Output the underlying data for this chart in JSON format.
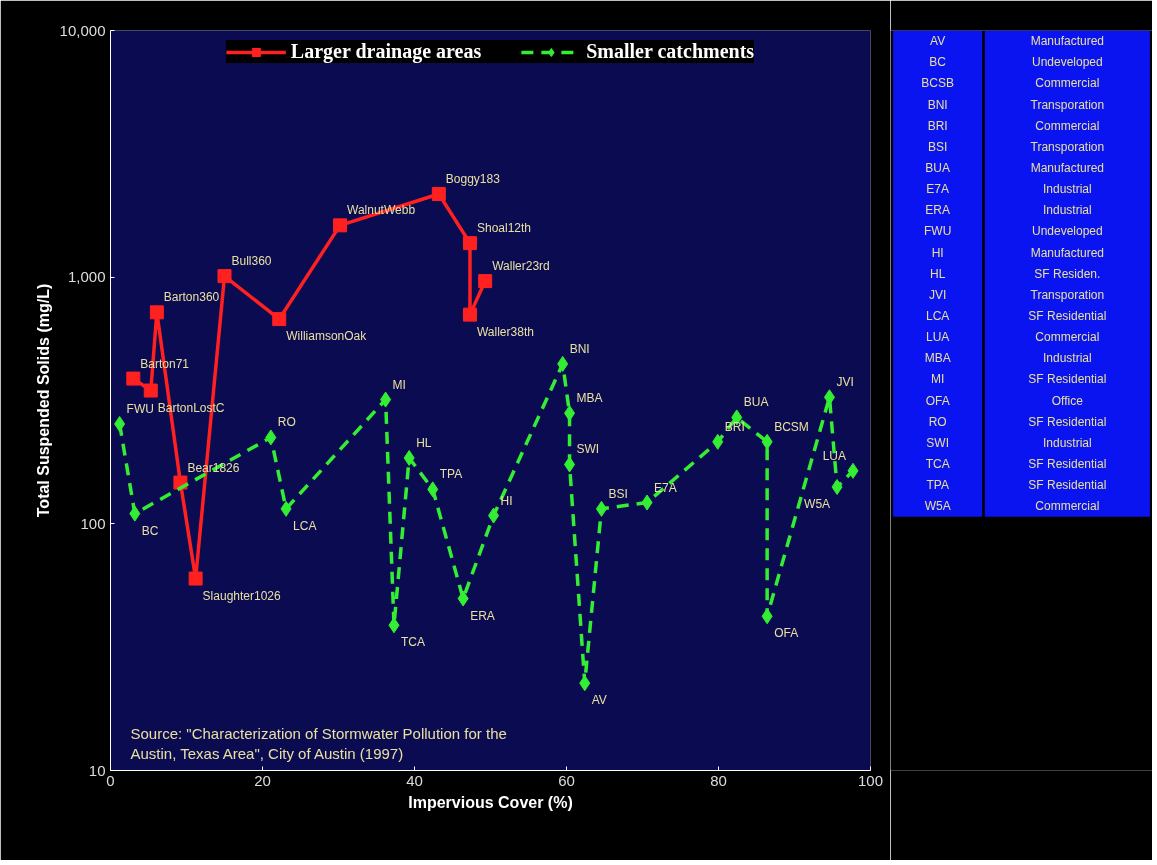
{
  "chart_data": [
    {
      "type": "line",
      "xlabel": "Impervious Cover (%)",
      "ylabel": "Total Suspended Solids (mg/L)",
      "xlim": [
        0,
        100
      ],
      "xticks": [
        0,
        20,
        40,
        60,
        80,
        100
      ],
      "ylim": [
        10,
        10000
      ],
      "yticks": [
        {
          "value": 10,
          "label": "10"
        },
        {
          "value": 100,
          "label": "100"
        },
        {
          "value": 1000,
          "label": "1,000"
        },
        {
          "value": 10000,
          "label": "10,000"
        }
      ],
      "log": true,
      "grid": false,
      "legend": "top",
      "series": [
        {
          "name": "Larger drainage areas",
          "color": "#ff2020",
          "marker": "square",
          "line_style": "solid",
          "x": [
            3.0,
            5.3,
            6.1,
            9.2,
            11.2,
            15.0,
            22.2,
            30.2,
            43.2,
            47.3,
            47.3,
            49.3
          ],
          "values": [
            388,
            347,
            720,
            147,
            60,
            1010,
            676,
            1622,
            2173,
            1374,
            705,
            964
          ]
        },
        {
          "name": "Smaller catchments",
          "color": "#33ee33",
          "marker": "diamond",
          "line_style": "dashed",
          "x": [
            1.2,
            3.2,
            21.1,
            23.1,
            36.2,
            37.3,
            39.3,
            42.4,
            46.4,
            50.4,
            59.5,
            60.4,
            60.4,
            62.4,
            64.6,
            70.6,
            79.9,
            82.4,
            86.4,
            86.4,
            94.6,
            95.6,
            97.7
          ],
          "values": [
            254,
            110,
            224,
            115,
            319,
            38.8,
            185,
            138,
            49.8,
            108,
            445,
            281,
            174,
            22.6,
            115,
            122,
            215,
            270,
            215,
            42.2,
            326,
            141,
            164
          ]
        }
      ],
      "annotations": [
        {
          "text": "Barton71",
          "x": 3.0,
          "y": 388
        },
        {
          "text": "BartonLostC",
          "x": 5.3,
          "y": 347
        },
        {
          "text": "Barton360",
          "x": 6.1,
          "y": 720
        },
        {
          "text": "Bear1826",
          "x": 9.2,
          "y": 147
        },
        {
          "text": "Slaughter1026",
          "x": 11.2,
          "y": 60
        },
        {
          "text": "Bull360",
          "x": 15.0,
          "y": 1010
        },
        {
          "text": "WilliamsonOak",
          "x": 22.2,
          "y": 676
        },
        {
          "text": "WalnutWebb",
          "x": 30.2,
          "y": 1622
        },
        {
          "text": "Boggy183",
          "x": 43.2,
          "y": 2173
        },
        {
          "text": "Shoal12th",
          "x": 47.3,
          "y": 1374
        },
        {
          "text": "Waller38th",
          "x": 47.3,
          "y": 705
        },
        {
          "text": "Waller23rd",
          "x": 49.3,
          "y": 964
        },
        {
          "text": "FWU",
          "x": 1.2,
          "y": 254
        },
        {
          "text": "BC",
          "x": 3.2,
          "y": 110
        },
        {
          "text": "RO",
          "x": 21.1,
          "y": 224
        },
        {
          "text": "LCA",
          "x": 23.1,
          "y": 115
        },
        {
          "text": "MI",
          "x": 36.2,
          "y": 319
        },
        {
          "text": "TCA",
          "x": 37.3,
          "y": 38.8
        },
        {
          "text": "HL",
          "x": 39.3,
          "y": 185
        },
        {
          "text": "TPA",
          "x": 42.4,
          "y": 138
        },
        {
          "text": "ERA",
          "x": 46.4,
          "y": 49.8
        },
        {
          "text": "HI",
          "x": 50.4,
          "y": 108
        },
        {
          "text": "BNI",
          "x": 59.5,
          "y": 445
        },
        {
          "text": "MBA",
          "x": 60.4,
          "y": 281
        },
        {
          "text": "SWI",
          "x": 60.4,
          "y": 174
        },
        {
          "text": "AV",
          "x": 62.4,
          "y": 22.6
        },
        {
          "text": "BSI",
          "x": 64.6,
          "y": 115
        },
        {
          "text": "E7A",
          "x": 70.6,
          "y": 122
        },
        {
          "text": "BRI",
          "x": 79.9,
          "y": 215
        },
        {
          "text": "BUA",
          "x": 82.4,
          "y": 270
        },
        {
          "text": "BCSM",
          "x": 86.4,
          "y": 215
        },
        {
          "text": "OFA",
          "x": 86.4,
          "y": 42.2
        },
        {
          "text": "JVI",
          "x": 94.6,
          "y": 326
        },
        {
          "text": "W5A",
          "x": 95.6,
          "y": 141
        },
        {
          "text": "LUA",
          "x": 97.7,
          "y": 164
        },
        "Source: \"Characterization of Stormwater Pollution for the Austin, Texas Area\", City of Austin (1997)"
      ]
    },
    {
      "type": "other",
      "annotations": [
        "AV",
        "Manufactured",
        "BC",
        "Undeveloped",
        "BCSB",
        "Commercial",
        "BNI",
        "Transporation",
        "BRI",
        "Commercial",
        "BSI",
        "Transporation",
        "BUA",
        "Manufactured",
        "E7A",
        "Industrial",
        "ERA",
        "Industrial",
        "FWU",
        "Undeveloped",
        "HI",
        "Manufactured",
        "HL",
        "SF Residen.",
        "JVI",
        "Transporation",
        "LCA",
        "SF Residential",
        "LUA",
        "Commercial",
        "MBA",
        "Industrial",
        "MI",
        "SF Residential",
        "OFA",
        "Office",
        "RO",
        "SF Residential",
        "SWI",
        "Industrial",
        "TCA",
        "SF Residential",
        "TPA",
        "SF Residential",
        "W5A",
        "Commercial"
      ]
    }
  ]
}
